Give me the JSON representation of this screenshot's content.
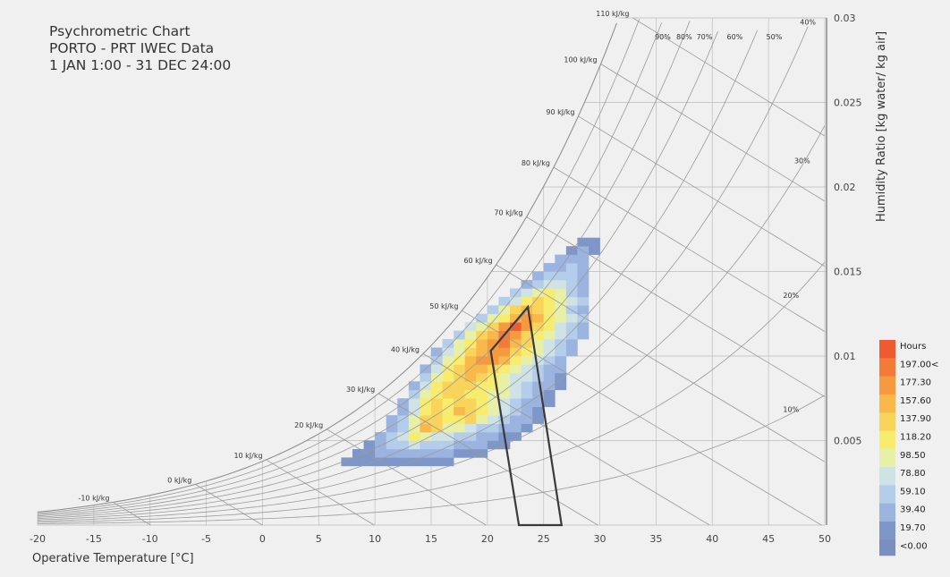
{
  "title_lines": [
    "Psychrometric Chart",
    "PORTO - PRT IWEC Data",
    "1 JAN 1:00 - 31 DEC 24:00"
  ],
  "chart_data": {
    "type": "heatmap",
    "title": "Psychrometric Chart",
    "subtitle": "PORTO - PRT IWEC Data · 1 JAN 1:00 - 31 DEC 24:00",
    "xlabel": "Operative Temperature [°C]",
    "ylabel": "Humidity Ratio [kg water/ kg air]",
    "xlim": [
      -20,
      50
    ],
    "ylim": [
      0,
      0.03
    ],
    "x_ticks": [
      "-20",
      "-15",
      "-10",
      "-5",
      "0",
      "5",
      "10",
      "15",
      "20",
      "25",
      "30",
      "35",
      "40",
      "45",
      "50"
    ],
    "y_ticks": [
      "0.005",
      "0.01",
      "0.015",
      "0.02",
      "0.025",
      "0.03"
    ],
    "y_tick_values": [
      0.005,
      0.01,
      0.015,
      0.02,
      0.025,
      0.03
    ],
    "rh_curves": [
      10,
      20,
      30,
      40,
      50,
      60,
      70,
      80,
      90,
      100
    ],
    "rh_labels": [
      {
        "rh": 40,
        "text": "40%",
        "x": 48.5
      },
      {
        "rh": 50,
        "text": "50%",
        "x": 45.5
      },
      {
        "rh": 60,
        "text": "60%",
        "x": 42
      },
      {
        "rh": 70,
        "text": "70%",
        "x": 39.3
      },
      {
        "rh": 80,
        "text": "80%",
        "x": 37.5
      },
      {
        "rh": 90,
        "text": "90%",
        "x": 35.6
      },
      {
        "rh": 30,
        "text": "30%",
        "x": 48
      },
      {
        "rh": 20,
        "text": "20%",
        "x": 47
      },
      {
        "rh": 10,
        "text": "10%",
        "x": 47
      }
    ],
    "enthalpy_lines": [
      -10,
      0,
      10,
      20,
      30,
      40,
      50,
      60,
      70,
      80,
      90,
      100,
      110
    ],
    "enthalpy_labels": [
      "-10 kJ/kg",
      "0 kJ/kg",
      "10 kJ/kg",
      "20 kJ/kg",
      "30 kJ/kg",
      "40 kJ/kg",
      "50 kJ/kg",
      "60 kJ/kg",
      "70 kJ/kg",
      "80 kJ/kg",
      "90 kJ/kg",
      "100 kJ/kg",
      "110 kJ/kg"
    ],
    "comfort_polygon": [
      [
        22.8,
        0
      ],
      [
        26.6,
        0
      ],
      [
        23.6,
        0.0129
      ],
      [
        20.3,
        0.0103
      ]
    ],
    "legend": {
      "title": "Hours",
      "labels": [
        "197.00<",
        "177.30",
        "157.60",
        "137.90",
        "118.20",
        "98.50",
        "78.80",
        "59.10",
        "39.40",
        "19.70",
        "<0.00"
      ],
      "colors": [
        "#f05a32",
        "#f47a3a",
        "#f69a40",
        "#f8b84c",
        "#f9d45a",
        "#f8ec6e",
        "#e8efa6",
        "#cfe3e4",
        "#b3cdea",
        "#9bb3df",
        "#7f96c8"
      ]
    },
    "bin_width": 1,
    "bin_height": 0.0005,
    "heatmap_rows": [
      {
        "w": 0.0035,
        "x0": 7,
        "counts": [
          10,
          10,
          12,
          12,
          15,
          15,
          18,
          15,
          12,
          10
        ]
      },
      {
        "w": 0.004,
        "x0": 8,
        "counts": [
          12,
          15,
          20,
          25,
          30,
          35,
          30,
          25,
          20,
          15,
          12,
          10
        ]
      },
      {
        "w": 0.0045,
        "x0": 9,
        "counts": [
          15,
          25,
          40,
          55,
          60,
          55,
          45,
          40,
          35,
          25,
          20,
          15,
          10
        ]
      },
      {
        "w": 0.005,
        "x0": 10,
        "counts": [
          20,
          40,
          70,
          110,
          90,
          70,
          60,
          55,
          40,
          30,
          20,
          15,
          10
        ]
      },
      {
        "w": 0.0055,
        "x0": 11,
        "counts": [
          25,
          50,
          90,
          140,
          120,
          95,
          85,
          75,
          55,
          40,
          30,
          20,
          15
        ]
      },
      {
        "w": 0.006,
        "x0": 11,
        "counts": [
          20,
          45,
          80,
          120,
          130,
          110,
          100,
          120,
          90,
          60,
          45,
          30,
          20,
          12
        ]
      },
      {
        "w": 0.0065,
        "x0": 12,
        "counts": [
          30,
          70,
          110,
          125,
          115,
          150,
          130,
          105,
          80,
          60,
          40,
          25,
          15
        ]
      },
      {
        "w": 0.007,
        "x0": 12,
        "counts": [
          25,
          60,
          100,
          120,
          110,
          130,
          120,
          110,
          90,
          70,
          50,
          35,
          20,
          12
        ]
      },
      {
        "w": 0.0075,
        "x0": 13,
        "counts": [
          40,
          90,
          110,
          120,
          125,
          115,
          105,
          95,
          80,
          60,
          40,
          25,
          15
        ]
      },
      {
        "w": 0.008,
        "x0": 13,
        "counts": [
          30,
          75,
          105,
          125,
          130,
          120,
          110,
          100,
          85,
          70,
          50,
          35,
          20,
          12
        ]
      },
      {
        "w": 0.0085,
        "x0": 14,
        "counts": [
          45,
          85,
          110,
          130,
          140,
          125,
          110,
          90,
          75,
          60,
          45,
          30,
          15
        ]
      },
      {
        "w": 0.009,
        "x0": 14,
        "counts": [
          35,
          70,
          100,
          125,
          145,
          150,
          130,
          110,
          90,
          70,
          50,
          35,
          20
        ]
      },
      {
        "w": 0.0095,
        "x0": 15,
        "counts": [
          50,
          85,
          115,
          140,
          160,
          165,
          140,
          115,
          90,
          70,
          50,
          30
        ]
      },
      {
        "w": 0.01,
        "x0": 15,
        "counts": [
          35,
          65,
          95,
          125,
          150,
          175,
          160,
          130,
          105,
          80,
          60,
          40,
          25
        ]
      },
      {
        "w": 0.0105,
        "x0": 16,
        "counts": [
          50,
          80,
          110,
          145,
          170,
          180,
          150,
          120,
          95,
          70,
          50,
          30
        ]
      },
      {
        "w": 0.011,
        "x0": 17,
        "counts": [
          55,
          85,
          120,
          150,
          195,
          170,
          135,
          110,
          85,
          60,
          40,
          25
        ]
      },
      {
        "w": 0.0115,
        "x0": 18,
        "counts": [
          60,
          95,
          130,
          170,
          200,
          160,
          125,
          100,
          75,
          50,
          30
        ]
      },
      {
        "w": 0.012,
        "x0": 19,
        "counts": [
          50,
          80,
          115,
          150,
          165,
          140,
          110,
          85,
          60,
          40
        ]
      },
      {
        "w": 0.0125,
        "x0": 20,
        "counts": [
          55,
          85,
          120,
          145,
          130,
          100,
          80,
          55,
          35
        ]
      },
      {
        "w": 0.013,
        "x0": 21,
        "counts": [
          45,
          75,
          100,
          120,
          105,
          85,
          60,
          40
        ]
      },
      {
        "w": 0.0135,
        "x0": 22,
        "counts": [
          40,
          65,
          90,
          100,
          80,
          55,
          35
        ]
      },
      {
        "w": 0.014,
        "x0": 23,
        "counts": [
          35,
          55,
          70,
          75,
          55,
          35
        ]
      },
      {
        "w": 0.0145,
        "x0": 24,
        "counts": [
          30,
          45,
          55,
          50,
          35
        ]
      },
      {
        "w": 0.015,
        "x0": 25,
        "counts": [
          25,
          35,
          45,
          30
        ]
      },
      {
        "w": 0.0155,
        "x0": 26,
        "counts": [
          20,
          30,
          25
        ]
      },
      {
        "w": 0.016,
        "x0": 27,
        "counts": [
          15,
          20,
          15
        ]
      },
      {
        "w": 0.0165,
        "x0": 28,
        "counts": [
          12,
          15
        ]
      }
    ]
  }
}
